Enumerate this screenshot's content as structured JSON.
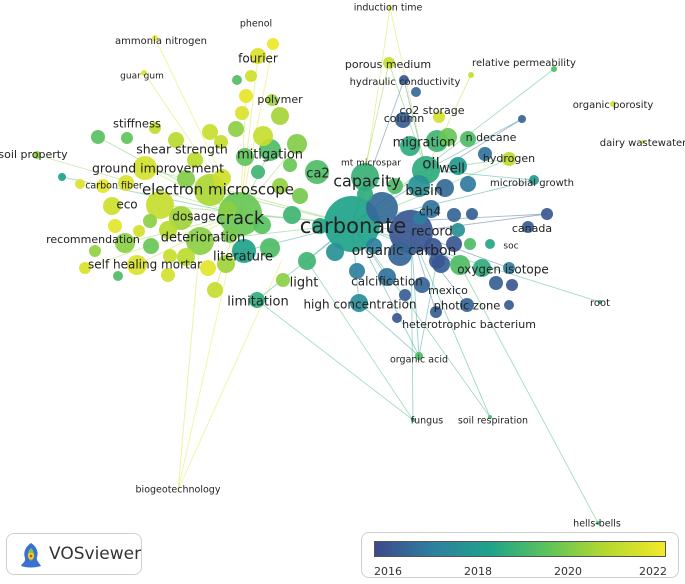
{
  "app_name": "VOSviewer",
  "colors": {
    "scale": [
      "#3b4a8c",
      "#2f7fa0",
      "#1fa38a",
      "#5fc45a",
      "#b6d92f",
      "#f2e92a"
    ],
    "link": "#c8c8c8"
  },
  "legend": {
    "ticks": [
      "2016",
      "2018",
      "2020",
      "2022"
    ]
  },
  "labels": [
    {
      "id": "induction-time",
      "text": "induction time"
    },
    {
      "id": "phenol",
      "text": "phenol"
    },
    {
      "id": "ammonia-nitrogen",
      "text": "ammonia nitrogen"
    },
    {
      "id": "fourier",
      "text": "fourier"
    },
    {
      "id": "porous-medium",
      "text": "porous medium"
    },
    {
      "id": "relative-permeability",
      "text": "relative permeability"
    },
    {
      "id": "guar-gum",
      "text": "guar gum"
    },
    {
      "id": "hydraulic-conductivity",
      "text": "hydraulic conductivity"
    },
    {
      "id": "polymer",
      "text": "polymer"
    },
    {
      "id": "organic-porosity",
      "text": "organic porosity"
    },
    {
      "id": "co2-storage",
      "text": "co2 storage"
    },
    {
      "id": "column",
      "text": "column"
    },
    {
      "id": "stiffness",
      "text": "stiffness"
    },
    {
      "id": "n-decane",
      "text": "n decane"
    },
    {
      "id": "migration",
      "text": "migration"
    },
    {
      "id": "dairy-wastewater",
      "text": "dairy wastewater"
    },
    {
      "id": "soil-property",
      "text": "soil property"
    },
    {
      "id": "shear-strength",
      "text": "shear strength"
    },
    {
      "id": "mitigation",
      "text": "mitigation"
    },
    {
      "id": "hydrogen",
      "text": "hydrogen"
    },
    {
      "id": "oil",
      "text": "oil"
    },
    {
      "id": "well",
      "text": "well"
    },
    {
      "id": "mt-microspar",
      "text": "mt microspar"
    },
    {
      "id": "ground-improvement",
      "text": "ground improvement"
    },
    {
      "id": "ca2",
      "text": "ca2"
    },
    {
      "id": "capacity",
      "text": "capacity"
    },
    {
      "id": "microbial-growth",
      "text": "microbial growth"
    },
    {
      "id": "carbon-fiber",
      "text": "carbon fiber"
    },
    {
      "id": "electron-microscope",
      "text": "electron microscope"
    },
    {
      "id": "basin",
      "text": "basin"
    },
    {
      "id": "eco",
      "text": "eco"
    },
    {
      "id": "ch4",
      "text": "ch4"
    },
    {
      "id": "dosage",
      "text": "dosage"
    },
    {
      "id": "crack",
      "text": "crack"
    },
    {
      "id": "carbonate",
      "text": "carbonate"
    },
    {
      "id": "canada",
      "text": "canada"
    },
    {
      "id": "record",
      "text": "record"
    },
    {
      "id": "recommendation",
      "text": "recommendation"
    },
    {
      "id": "deterioration",
      "text": "deterioration"
    },
    {
      "id": "soc",
      "text": "soc"
    },
    {
      "id": "organic-carbon",
      "text": "organic carbon"
    },
    {
      "id": "literature",
      "text": "literature"
    },
    {
      "id": "self-healing-mortar",
      "text": "self healing mortar"
    },
    {
      "id": "oxygen-isotope",
      "text": "oxygen isotope"
    },
    {
      "id": "mexico",
      "text": "mexico"
    },
    {
      "id": "calcification",
      "text": "calcification"
    },
    {
      "id": "light",
      "text": "light"
    },
    {
      "id": "limitation",
      "text": "limitation"
    },
    {
      "id": "high-concentration",
      "text": "high concentration"
    },
    {
      "id": "photic-zone",
      "text": "photic zone"
    },
    {
      "id": "root",
      "text": "root"
    },
    {
      "id": "heterotrophic-bacterium",
      "text": "heterotrophic bacterium"
    },
    {
      "id": "organic-acid",
      "text": "organic acid"
    },
    {
      "id": "fungus",
      "text": "fungus"
    },
    {
      "id": "soil-respiration",
      "text": "soil respiration"
    },
    {
      "id": "biogeotechnology",
      "text": "biogeotechnology"
    },
    {
      "id": "hells-bells",
      "text": "hells-bells"
    }
  ]
}
